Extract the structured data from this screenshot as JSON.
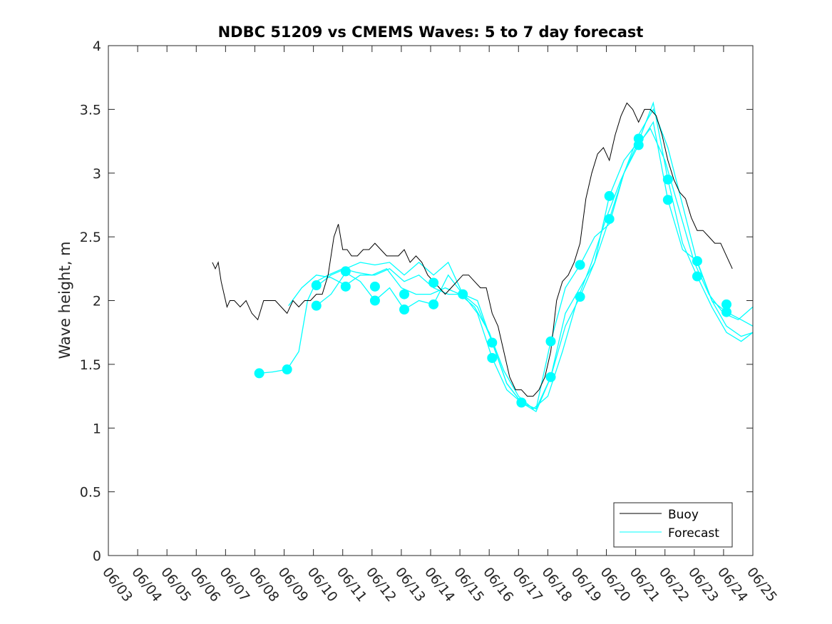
{
  "chart_data": {
    "type": "line",
    "title": "NDBC 51209 vs CMEMS Waves: 5 to 7 day forecast",
    "xlabel": "",
    "ylabel": "Wave height, m",
    "x_tick_labels": [
      "06/03",
      "06/04",
      "06/05",
      "06/06",
      "06/07",
      "06/08",
      "06/09",
      "06/10",
      "06/11",
      "06/12",
      "06/13",
      "06/14",
      "06/15",
      "06/16",
      "06/17",
      "06/18",
      "06/19",
      "06/20",
      "06/21",
      "06/22",
      "06/23",
      "06/24",
      "06/25"
    ],
    "y_tick_labels": [
      "0",
      "0.5",
      "1",
      "1.5",
      "2",
      "2.5",
      "3",
      "3.5",
      "4"
    ],
    "xlim_days": [
      3,
      25
    ],
    "ylim": [
      0,
      4
    ],
    "grid": false,
    "legend_position": "bottom-right",
    "colors": {
      "buoy": "#000000",
      "forecast": "#00ffff",
      "axis": "#262626"
    },
    "series": [
      {
        "name": "Buoy",
        "x_day": [
          6.55,
          6.65,
          6.75,
          6.85,
          6.95,
          7.05,
          7.15,
          7.3,
          7.5,
          7.7,
          7.9,
          8.1,
          8.3,
          8.5,
          8.7,
          8.9,
          9.1,
          9.3,
          9.5,
          9.7,
          9.9,
          10.1,
          10.3,
          10.5,
          10.7,
          10.85,
          11.0,
          11.15,
          11.3,
          11.5,
          11.7,
          11.9,
          12.1,
          12.3,
          12.5,
          12.7,
          12.9,
          13.1,
          13.3,
          13.5,
          13.7,
          13.9,
          14.1,
          14.3,
          14.5,
          14.7,
          14.9,
          15.1,
          15.3,
          15.5,
          15.7,
          15.9,
          16.1,
          16.3,
          16.5,
          16.7,
          16.9,
          17.1,
          17.3,
          17.5,
          17.7,
          17.9,
          18.1,
          18.3,
          18.5,
          18.7,
          18.9,
          19.1,
          19.3,
          19.5,
          19.7,
          19.9,
          20.1,
          20.3,
          20.5,
          20.7,
          20.9,
          21.1,
          21.3,
          21.5,
          21.7,
          21.9,
          22.1,
          22.3,
          22.5,
          22.7,
          22.9,
          23.1,
          23.3,
          23.5,
          23.7,
          23.9,
          24.1,
          24.3
        ],
        "y": [
          2.3,
          2.25,
          2.3,
          2.15,
          2.05,
          1.95,
          2.0,
          2.0,
          1.95,
          2.0,
          1.9,
          1.85,
          2.0,
          2.0,
          2.0,
          1.95,
          1.9,
          2.0,
          1.95,
          2.0,
          2.0,
          2.05,
          2.05,
          2.2,
          2.5,
          2.6,
          2.4,
          2.4,
          2.35,
          2.35,
          2.4,
          2.4,
          2.45,
          2.4,
          2.35,
          2.35,
          2.35,
          2.4,
          2.3,
          2.35,
          2.3,
          2.2,
          2.15,
          2.1,
          2.05,
          2.1,
          2.15,
          2.2,
          2.2,
          2.15,
          2.1,
          2.1,
          1.9,
          1.8,
          1.6,
          1.4,
          1.3,
          1.3,
          1.25,
          1.25,
          1.3,
          1.4,
          1.6,
          2.0,
          2.15,
          2.2,
          2.3,
          2.45,
          2.8,
          3.0,
          3.15,
          3.2,
          3.1,
          3.3,
          3.45,
          3.55,
          3.5,
          3.4,
          3.5,
          3.5,
          3.45,
          3.3,
          3.1,
          2.95,
          2.85,
          2.8,
          2.65,
          2.55,
          2.55,
          2.5,
          2.45,
          2.45,
          2.35,
          2.25
        ]
      },
      {
        "name": "Forecast",
        "runs": [
          {
            "x_day": [
              8.15,
              8.6,
              9.1,
              9.5,
              9.8,
              10.1,
              10.5,
              11.0,
              11.5,
              12.0,
              12.5,
              13.0,
              13.5,
              14.0,
              14.5,
              15.0,
              15.5,
              16.0,
              16.5,
              17.0,
              17.5,
              18.0,
              18.5,
              19.0,
              19.5,
              20.0,
              20.5,
              21.0,
              21.5,
              22.0,
              22.5,
              23.0,
              23.5,
              24.0,
              24.5,
              25.0
            ],
            "y": [
              1.43,
              1.44,
              1.46,
              1.6,
              2.0,
              2.15,
              2.2,
              2.25,
              2.22,
              2.2,
              2.25,
              2.1,
              2.05,
              2.05,
              2.1,
              2.05,
              1.95,
              1.75,
              1.45,
              1.25,
              1.15,
              1.25,
              1.6,
              2.0,
              2.3,
              2.65,
              2.95,
              3.2,
              3.35,
              3.1,
              2.7,
              2.3,
              2.05,
              1.9,
              1.85,
              1.95
            ]
          },
          {
            "x_day": [
              9.15,
              9.6,
              10.1,
              10.6,
              11.1,
              11.6,
              12.1,
              12.6,
              13.1,
              13.6,
              14.1,
              14.6,
              15.1,
              15.6,
              16.1,
              16.6,
              17.1,
              17.6,
              18.1,
              18.6,
              19.1,
              19.6,
              20.1,
              20.6,
              21.1,
              21.6,
              22.1,
              22.6,
              23.1,
              23.6,
              24.1,
              24.6,
              25.0
            ],
            "y": [
              1.96,
              2.1,
              2.2,
              2.18,
              2.12,
              2.2,
              2.2,
              2.25,
              2.15,
              2.2,
              2.1,
              2.05,
              2.05,
              1.95,
              1.68,
              1.35,
              1.2,
              1.13,
              1.4,
              1.9,
              2.1,
              2.3,
              2.64,
              3.0,
              3.3,
              3.5,
              3.2,
              2.75,
              2.3,
              2.0,
              1.8,
              1.72,
              1.75
            ]
          },
          {
            "x_day": [
              10.1,
              10.6,
              11.1,
              11.6,
              12.1,
              12.6,
              13.1,
              13.6,
              14.1,
              14.6,
              15.1,
              15.6,
              16.1,
              16.6,
              17.1,
              17.6,
              18.1,
              18.6,
              19.1,
              19.6,
              20.1,
              20.6,
              21.1,
              21.6,
              22.1,
              22.6,
              23.1,
              23.6,
              24.1,
              24.6,
              25.0
            ],
            "y": [
              2.11,
              2.2,
              2.25,
              2.3,
              2.28,
              2.3,
              2.2,
              2.3,
              2.2,
              2.3,
              2.05,
              1.9,
              1.55,
              1.3,
              1.2,
              1.15,
              1.4,
              1.8,
              2.03,
              2.3,
              2.82,
              3.1,
              3.25,
              3.55,
              2.95,
              2.45,
              2.19,
              1.95,
              1.75,
              1.68,
              1.75
            ]
          },
          {
            "x_day": [
              10.1,
              10.6,
              11.1,
              11.6,
              12.1,
              12.6,
              13.1,
              13.6,
              14.1,
              14.6,
              15.1,
              15.6,
              16.1,
              16.6,
              17.1,
              17.6,
              18.1,
              18.6,
              19.1,
              19.6,
              20.1,
              20.6,
              21.1,
              21.6,
              22.1,
              22.6,
              23.1,
              23.6,
              24.1,
              24.6,
              25.0
            ],
            "y": [
              1.96,
              2.05,
              2.22,
              2.15,
              2.0,
              2.1,
              1.93,
              2.0,
              1.97,
              2.2,
              2.05,
              2.0,
              1.67,
              1.35,
              1.2,
              1.15,
              1.68,
              2.1,
              2.28,
              2.5,
              2.6,
              3.0,
              3.22,
              3.4,
              2.79,
              2.4,
              2.31,
              2.0,
              1.91,
              1.85,
              1.8
            ]
          }
        ],
        "dots": [
          {
            "x_day": 8.15,
            "y": 1.43
          },
          {
            "x_day": 9.1,
            "y": 1.46
          },
          {
            "x_day": 10.1,
            "y": 2.12
          },
          {
            "x_day": 10.1,
            "y": 1.96
          },
          {
            "x_day": 11.1,
            "y": 2.23
          },
          {
            "x_day": 11.1,
            "y": 2.11
          },
          {
            "x_day": 12.1,
            "y": 2.11
          },
          {
            "x_day": 12.1,
            "y": 2.0
          },
          {
            "x_day": 13.1,
            "y": 2.05
          },
          {
            "x_day": 13.1,
            "y": 1.93
          },
          {
            "x_day": 14.1,
            "y": 2.14
          },
          {
            "x_day": 14.1,
            "y": 1.97
          },
          {
            "x_day": 15.1,
            "y": 2.05
          },
          {
            "x_day": 16.1,
            "y": 1.67
          },
          {
            "x_day": 16.1,
            "y": 1.55
          },
          {
            "x_day": 17.1,
            "y": 1.2
          },
          {
            "x_day": 18.1,
            "y": 1.68
          },
          {
            "x_day": 18.1,
            "y": 1.4
          },
          {
            "x_day": 19.1,
            "y": 2.28
          },
          {
            "x_day": 19.1,
            "y": 2.03
          },
          {
            "x_day": 20.1,
            "y": 2.82
          },
          {
            "x_day": 20.1,
            "y": 2.64
          },
          {
            "x_day": 21.1,
            "y": 3.27
          },
          {
            "x_day": 21.1,
            "y": 3.22
          },
          {
            "x_day": 22.1,
            "y": 2.95
          },
          {
            "x_day": 22.1,
            "y": 2.79
          },
          {
            "x_day": 23.1,
            "y": 2.31
          },
          {
            "x_day": 23.1,
            "y": 2.19
          },
          {
            "x_day": 24.1,
            "y": 1.97
          },
          {
            "x_day": 24.1,
            "y": 1.91
          }
        ]
      }
    ]
  }
}
